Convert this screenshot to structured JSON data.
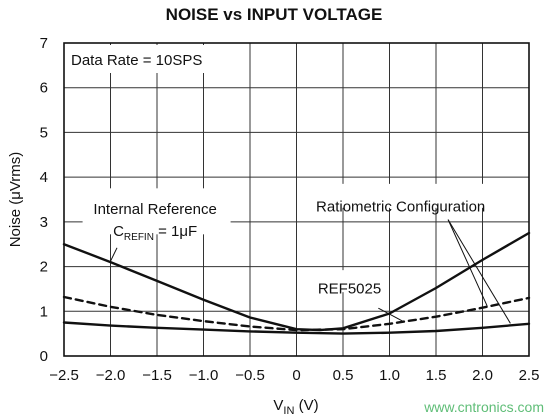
{
  "chart_data": {
    "type": "line",
    "title": "NOISE vs INPUT VOLTAGE",
    "xlabel": "V",
    "xlabel_sub": "IN",
    "xlabel_unit": " (V)",
    "ylabel": "Noise (μVrms)",
    "xlim": [
      -2.5,
      2.5
    ],
    "ylim": [
      0,
      7
    ],
    "x_ticks": [
      -2.5,
      -2.0,
      -1.5,
      -1.0,
      -0.5,
      0,
      0.5,
      1.0,
      1.5,
      2.0,
      2.5
    ],
    "x_tick_labels": [
      "−2.5",
      "−2.0",
      "−1.5",
      "−1.0",
      "−0.5",
      "0",
      "0.5",
      "1.0",
      "1.5",
      "2.0",
      "2.5"
    ],
    "y_ticks": [
      0,
      1,
      2,
      3,
      4,
      5,
      6,
      7
    ],
    "y_tick_labels": [
      "0",
      "1",
      "2",
      "3",
      "4",
      "5",
      "6",
      "7"
    ],
    "grid": true,
    "annotations": {
      "data_rate": "Data Rate = 10SPS",
      "internal_ref_line1": "Internal Reference",
      "internal_ref_c": "C",
      "internal_ref_sub": "REFIN",
      "internal_ref_rest": " = 1μF",
      "ratiometric": "Ratiometric Configuration",
      "ref5025": "REF5025"
    },
    "series": [
      {
        "key": "internal",
        "style": "solid",
        "x": [
          -2.5,
          -2.0,
          -1.5,
          -1.0,
          -0.5,
          0,
          0.25,
          0.5,
          1.0,
          1.5,
          2.0,
          2.5
        ],
        "values": [
          2.5,
          2.1,
          1.68,
          1.26,
          0.86,
          0.6,
          0.58,
          0.62,
          0.95,
          1.52,
          2.15,
          2.75
        ]
      },
      {
        "key": "ref5025",
        "style": "dashed",
        "x": [
          -2.5,
          -2.0,
          -1.5,
          -1.0,
          -0.5,
          0,
          0.5,
          1.0,
          1.5,
          2.0,
          2.5
        ],
        "values": [
          1.32,
          1.1,
          0.92,
          0.78,
          0.66,
          0.58,
          0.6,
          0.72,
          0.88,
          1.08,
          1.3
        ]
      },
      {
        "key": "ratiometric",
        "style": "solid",
        "x": [
          -2.5,
          -2.0,
          -1.5,
          -1.0,
          -0.5,
          0,
          0.5,
          1.0,
          1.5,
          2.0,
          2.5
        ],
        "values": [
          0.75,
          0.68,
          0.63,
          0.59,
          0.55,
          0.52,
          0.5,
          0.52,
          0.56,
          0.63,
          0.72
        ]
      }
    ]
  },
  "watermark": "www.cntronics.com"
}
